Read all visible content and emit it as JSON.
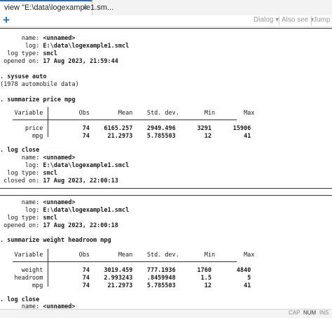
{
  "tab": {
    "label": "view \"E:\\data\\logexample1.sm...",
    "close": "×"
  },
  "toolbar": {
    "add": "+",
    "dialog": "Dialog ▾",
    "also_see": "Also see ▾",
    "jump": "Jump to"
  },
  "lines": {
    "l1_label": "      name:",
    "l1_val": "<unnamed>",
    "l2_label": "       log:",
    "l2_val": "E:\\data\\logexample1.smcl",
    "l3_label": "  log type:",
    "l3_val": "smcl",
    "l4_label": " opened on:",
    "l4_val": "17 Aug 2023, 21:59:44",
    "cmd1": ". sysuse auto",
    "cmd1_out": "(1978 automobile data)",
    "cmd2": ". summarize price mpg",
    "t1_head_var": "    Variable",
    "t1_head_rest": "         Obs        Mean    Std. dev.       Min        Max",
    "t1_r1_var": "       price",
    "t1_r1_rest": "          74    6165.257    2949.496      3291      15906",
    "t1_r2_var": "         mpg",
    "t1_r2_rest": "          74     21.2973    5.785503        12         41",
    "cmd3": ". log close",
    "l5_label": "      name:",
    "l5_val": "<unnamed>",
    "l6_label": "       log:",
    "l6_val": "E:\\data\\logexample1.smcl",
    "l7_label": "  log type:",
    "l7_val": "smcl",
    "l8_label": " closed on:",
    "l8_val": "17 Aug 2023, 22:00:13",
    "l9_label": "      name:",
    "l9_val": "<unnamed>",
    "l10_label": "       log:",
    "l10_val": "E:\\data\\logexample1.smcl",
    "l11_label": "  log type:",
    "l11_val": "smcl",
    "l12_label": " opened on:",
    "l12_val": "17 Aug 2023, 22:00:18",
    "cmd4": ". summarize weight headroom mpg",
    "t2_head_var": "    Variable",
    "t2_head_rest": "         Obs        Mean    Std. dev.       Min        Max",
    "t2_r1_var": "      weight",
    "t2_r1_rest": "          74    3019.459    777.1936      1760       4840",
    "t2_r2_var": "    headroom",
    "t2_r2_rest": "          74    2.993243    .8459948       1.5          5",
    "t2_r3_var": "         mpg",
    "t2_r3_rest": "          74     21.2973    5.785503        12         41",
    "cmd5": ". log close",
    "l13_label": "      name:",
    "l13_val": "<unnamed>"
  },
  "status": {
    "cap": "CAP",
    "num": "NUM",
    "ins": "INS"
  }
}
